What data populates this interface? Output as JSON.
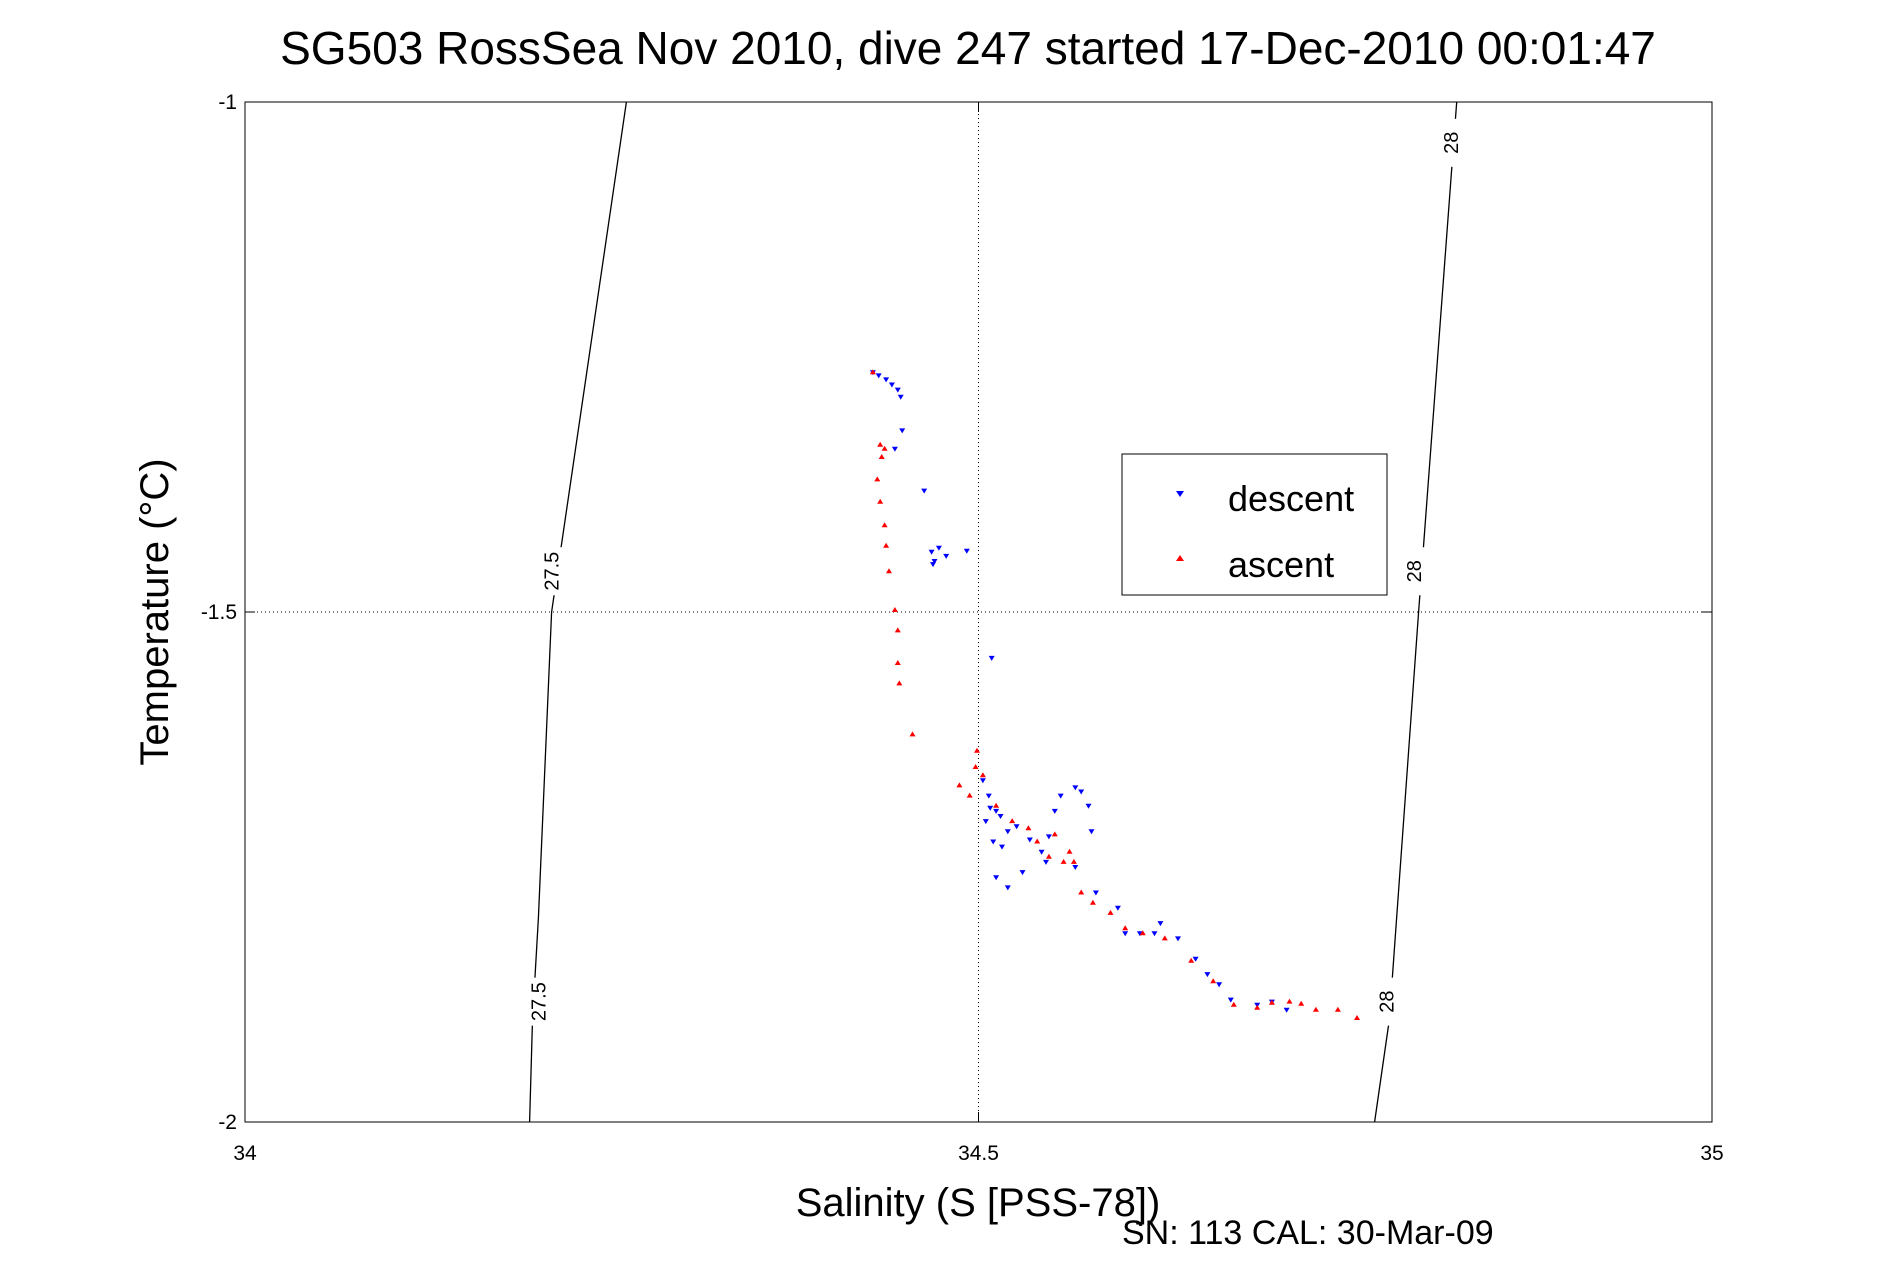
{
  "chart_data": {
    "type": "scatter",
    "title": "SG503 RossSea Nov 2010, dive 247 started 17-Dec-2010 00:01:47",
    "xlabel": "Salinity (S [PSS-78])",
    "ylabel": "Temperature (°C)",
    "footnote": "SN: 113  CAL: 30-Mar-09",
    "xlim": [
      34,
      35
    ],
    "ylim": [
      -2,
      -1
    ],
    "x_ticks": [
      34,
      34.5,
      35
    ],
    "x_tick_labels": [
      "34",
      "34.5",
      "35"
    ],
    "y_ticks": [
      -1,
      -1.5,
      -2
    ],
    "y_tick_labels": [
      "-1",
      "-1.5",
      "-2"
    ],
    "grid": true,
    "legend_position": "center-right",
    "isopycnals": [
      {
        "label": "27.5",
        "points": [
          [
            34.194,
            -2.0
          ],
          [
            34.196,
            -1.9
          ],
          [
            34.209,
            -1.5
          ],
          [
            34.2,
            -1.8
          ],
          [
            34.26,
            -1.0
          ]
        ]
      },
      {
        "label": "28",
        "points": [
          [
            34.77,
            -2.0
          ],
          [
            34.78,
            -1.9
          ],
          [
            34.8,
            -1.5
          ],
          [
            34.826,
            -1.0
          ]
        ]
      }
    ],
    "series": [
      {
        "name": "descent",
        "color": "#0000ff",
        "marker": "triangle-down",
        "points": [
          [
            34.428,
            -1.265
          ],
          [
            34.432,
            -1.268
          ],
          [
            34.437,
            -1.272
          ],
          [
            34.441,
            -1.277
          ],
          [
            34.445,
            -1.282
          ],
          [
            34.447,
            -1.289
          ],
          [
            34.448,
            -1.322
          ],
          [
            34.443,
            -1.34
          ],
          [
            34.463,
            -1.381
          ],
          [
            34.468,
            -1.441
          ],
          [
            34.469,
            -1.453
          ],
          [
            34.47,
            -1.45
          ],
          [
            34.473,
            -1.437
          ],
          [
            34.478,
            -1.445
          ],
          [
            34.492,
            -1.44
          ],
          [
            34.509,
            -1.545
          ],
          [
            34.503,
            -1.665
          ],
          [
            34.507,
            -1.68
          ],
          [
            34.508,
            -1.692
          ],
          [
            34.512,
            -1.695
          ],
          [
            34.515,
            -1.7
          ],
          [
            34.505,
            -1.705
          ],
          [
            34.51,
            -1.725
          ],
          [
            34.516,
            -1.73
          ],
          [
            34.52,
            -1.715
          ],
          [
            34.526,
            -1.71
          ],
          [
            34.535,
            -1.723
          ],
          [
            34.543,
            -1.735
          ],
          [
            34.548,
            -1.72
          ],
          [
            34.552,
            -1.695
          ],
          [
            34.556,
            -1.68
          ],
          [
            34.566,
            -1.672
          ],
          [
            34.57,
            -1.676
          ],
          [
            34.575,
            -1.69
          ],
          [
            34.577,
            -1.715
          ],
          [
            34.566,
            -1.75
          ],
          [
            34.546,
            -1.745
          ],
          [
            34.53,
            -1.755
          ],
          [
            34.512,
            -1.76
          ],
          [
            34.52,
            -1.77
          ],
          [
            34.58,
            -1.775
          ],
          [
            34.595,
            -1.79
          ],
          [
            34.6,
            -1.815
          ],
          [
            34.61,
            -1.815
          ],
          [
            34.62,
            -1.815
          ],
          [
            34.624,
            -1.805
          ],
          [
            34.636,
            -1.82
          ],
          [
            34.648,
            -1.84
          ],
          [
            34.656,
            -1.855
          ],
          [
            34.664,
            -1.865
          ],
          [
            34.672,
            -1.88
          ],
          [
            34.69,
            -1.885
          ],
          [
            34.7,
            -1.882
          ],
          [
            34.71,
            -1.89
          ]
        ]
      },
      {
        "name": "ascent",
        "color": "#ff0000",
        "marker": "triangle-up",
        "points": [
          [
            34.428,
            -1.265
          ],
          [
            34.433,
            -1.336
          ],
          [
            34.434,
            -1.348
          ],
          [
            34.436,
            -1.34
          ],
          [
            34.431,
            -1.37
          ],
          [
            34.433,
            -1.392
          ],
          [
            34.436,
            -1.415
          ],
          [
            34.437,
            -1.435
          ],
          [
            34.439,
            -1.46
          ],
          [
            34.443,
            -1.498
          ],
          [
            34.445,
            -1.518
          ],
          [
            34.445,
            -1.55
          ],
          [
            34.446,
            -1.57
          ],
          [
            34.455,
            -1.62
          ],
          [
            34.498,
            -1.652
          ],
          [
            34.499,
            -1.636
          ],
          [
            34.487,
            -1.67
          ],
          [
            34.494,
            -1.68
          ],
          [
            34.503,
            -1.66
          ],
          [
            34.512,
            -1.69
          ],
          [
            34.523,
            -1.705
          ],
          [
            34.534,
            -1.712
          ],
          [
            34.54,
            -1.725
          ],
          [
            34.548,
            -1.74
          ],
          [
            34.552,
            -1.718
          ],
          [
            34.562,
            -1.735
          ],
          [
            34.565,
            -1.745
          ],
          [
            34.558,
            -1.745
          ],
          [
            34.57,
            -1.775
          ],
          [
            34.578,
            -1.785
          ],
          [
            34.59,
            -1.795
          ],
          [
            34.6,
            -1.81
          ],
          [
            34.612,
            -1.815
          ],
          [
            34.627,
            -1.82
          ],
          [
            34.645,
            -1.842
          ],
          [
            34.66,
            -1.862
          ],
          [
            34.674,
            -1.885
          ],
          [
            34.69,
            -1.888
          ],
          [
            34.7,
            -1.883
          ],
          [
            34.712,
            -1.882
          ],
          [
            34.72,
            -1.884
          ],
          [
            34.73,
            -1.89
          ],
          [
            34.745,
            -1.89
          ],
          [
            34.758,
            -1.898
          ]
        ]
      }
    ]
  },
  "legend": {
    "descent_label": "descent",
    "ascent_label": "ascent"
  }
}
